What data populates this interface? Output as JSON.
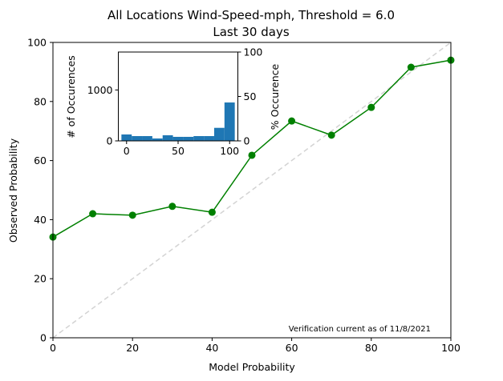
{
  "chart_data": [
    {
      "type": "line",
      "title": "All Locations Wind-Speed-mph, Threshold = 6.0",
      "subtitle": "Last 30 days",
      "xlabel": "Model Probability",
      "ylabel": "Observed Probability",
      "xlim": [
        0,
        100
      ],
      "ylim": [
        0,
        100
      ],
      "xticks": [
        "0",
        "20",
        "40",
        "60",
        "80",
        "100"
      ],
      "yticks": [
        "0",
        "20",
        "40",
        "60",
        "80",
        "100"
      ],
      "grid": false,
      "series": [
        {
          "x": [
            0,
            10,
            20,
            30,
            40,
            50,
            60,
            70,
            80,
            90,
            100
          ],
          "y": [
            34.1,
            42.0,
            41.5,
            44.5,
            42.5,
            61.8,
            73.4,
            68.6,
            78.0,
            91.6,
            94.0
          ],
          "color": "#008000",
          "marker": "circle"
        }
      ],
      "reference_line": {
        "x": [
          0,
          100
        ],
        "y": [
          0,
          100
        ],
        "color": "#d3d3d3",
        "style": "dashed"
      },
      "annotation": "Verification current as of 11/8/2021"
    },
    {
      "type": "bar",
      "position": "inset top-left",
      "ylabel": "# of Occurences",
      "ylabel_right": "% Occurence",
      "xlim": [
        -8,
        108
      ],
      "ylim": [
        0,
        1745
      ],
      "ylim_right": [
        0,
        100
      ],
      "xticks": [
        "0",
        "50",
        "100"
      ],
      "yticks": [
        "0",
        "1000"
      ],
      "yticks_right": [
        "0",
        "50",
        "100"
      ],
      "bin_edges": [
        -5,
        5,
        15,
        25,
        35,
        45,
        55,
        65,
        75,
        85,
        95,
        105
      ],
      "values": [
        126,
        94,
        94,
        47,
        110,
        79,
        79,
        94,
        94,
        256,
        754
      ],
      "color": "#1f77b4"
    }
  ]
}
